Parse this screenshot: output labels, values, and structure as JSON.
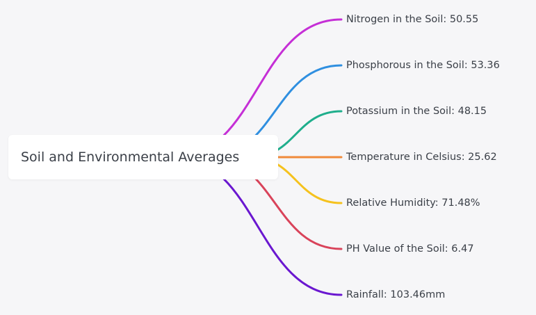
{
  "root": {
    "label": "Soil and Environmental Averages"
  },
  "branches": [
    {
      "label": "Nitrogen in the Soil: 50.55",
      "color": "#c52fd6"
    },
    {
      "label": "Phosphorous in the Soil: 53.36",
      "color": "#2f8fe0"
    },
    {
      "label": "Potassium in the Soil: 48.15",
      "color": "#1fae8c"
    },
    {
      "label": "Temperature in Celsius: 25.62",
      "color": "#f08a3a"
    },
    {
      "label": "Relative Humidity: 71.48%",
      "color": "#f5c21e"
    },
    {
      "label": "PH Value of the Soil: 6.47",
      "color": "#d9435a"
    },
    {
      "label": "Rainfall: 103.46mm",
      "color": "#6a17d0"
    }
  ]
}
